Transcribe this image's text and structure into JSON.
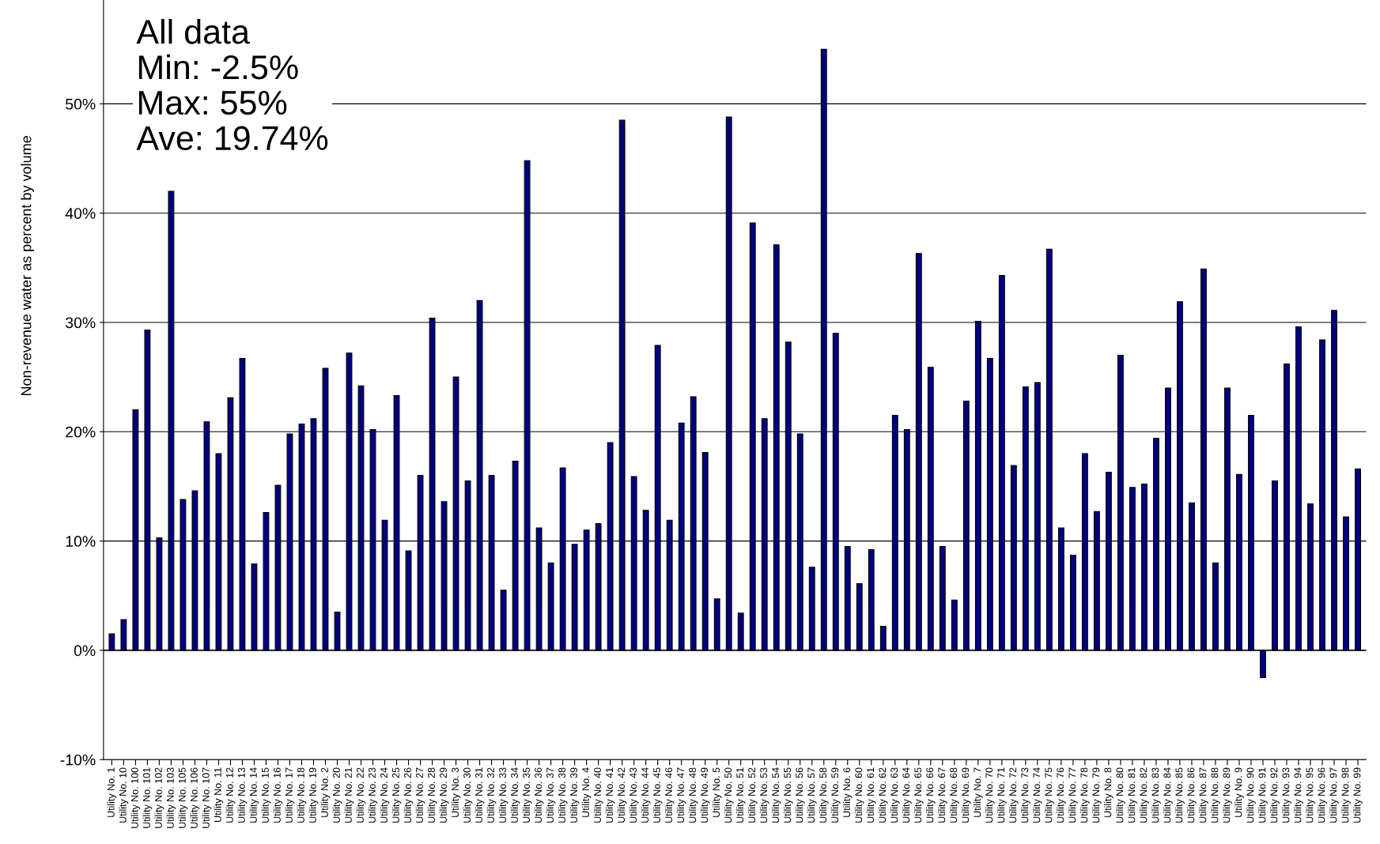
{
  "chart_data": {
    "type": "bar",
    "ylabel": "Non-revenue water as percent by volume",
    "categories": [
      "Utility No. 1",
      "Utility No. 10",
      "Utility No. 100",
      "Utility No. 101",
      "Utility No. 102",
      "Utility No. 103",
      "Utility No. 105",
      "Utility No. 106",
      "Utility No. 107",
      "Utility No. 11",
      "Utility No. 12",
      "Utility No. 13",
      "Utility No. 14",
      "Utility No. 15",
      "Utility No. 16",
      "Utility No. 17",
      "Utility No. 18",
      "Utility No. 19",
      "Utility No. 2",
      "Utility No. 20",
      "Utility No. 21",
      "Utility No. 22",
      "Utility No. 23",
      "Utility No. 24",
      "Utility No. 25",
      "Utility No. 26",
      "Utility No. 27",
      "Utility No. 28",
      "Utility No. 29",
      "Utility No. 3",
      "Utility No. 30",
      "Utility No. 31",
      "Utility No. 32",
      "Utility No. 33",
      "Utility No. 34",
      "Utility No. 35",
      "Utility No. 36",
      "Utility No. 37",
      "Utility No. 38",
      "Utility No. 39",
      "Utility No. 4",
      "Utility No. 40",
      "Utility No. 41",
      "Utility No. 42",
      "Utility No. 43",
      "Utility No. 44",
      "Utility No. 45",
      "Utility No. 46",
      "Utility No. 47",
      "Utility No. 48",
      "Utility No. 49",
      "Utility No. 5",
      "Utility No. 50",
      "Utility No. 51",
      "Utility No. 52",
      "Utility No. 53",
      "Utility No. 54",
      "Utility No. 55",
      "Utility No. 56",
      "Utility No. 57",
      "Utility No. 58",
      "Utility No. 59",
      "Utility No. 6",
      "Utility No. 60",
      "Utility No. 61",
      "Utility No. 62",
      "Utility No. 63",
      "Utility No. 64",
      "Utility No. 65",
      "Utility No. 66",
      "Utility No. 67",
      "Utility No. 68",
      "Utility No. 69",
      "Utility No. 7",
      "Utility No. 70",
      "Utility No. 71",
      "Utility No. 72",
      "Utility No. 73",
      "Utility No. 74",
      "Utility No. 75",
      "Utility No. 76",
      "Utility No. 77",
      "Utility No. 78",
      "Utility No. 79",
      "Utility No. 8",
      "Utility No. 80",
      "Utility No. 81",
      "Utility No. 82",
      "Utility No. 83",
      "Utility No. 84",
      "Utility No. 85",
      "Utility No. 86",
      "Utility No. 87",
      "Utility No. 88",
      "Utility No. 89",
      "Utility No. 9",
      "Utility No. 90",
      "Utility No. 91",
      "Utility No. 92",
      "Utility No. 93",
      "Utility No. 94",
      "Utility No. 95",
      "Utility No. 96",
      "Utility No. 97",
      "Utility No. 98",
      "Utility No. 99"
    ],
    "values": [
      1.5,
      2.8,
      22,
      29.3,
      10.3,
      42,
      13.8,
      14.6,
      20.9,
      18,
      23.1,
      26.7,
      7.9,
      12.6,
      15.1,
      19.8,
      20.7,
      21.2,
      25.8,
      3.5,
      27.2,
      24.2,
      20.2,
      11.9,
      23.3,
      9.1,
      16,
      30.4,
      13.6,
      25,
      15.5,
      32,
      16,
      5.5,
      17.3,
      44.8,
      11.2,
      8,
      16.7,
      9.7,
      11,
      11.6,
      19,
      48.5,
      15.9,
      12.8,
      27.9,
      11.9,
      20.8,
      23.2,
      18.1,
      4.7,
      48.8,
      3.4,
      39.1,
      21.2,
      37.1,
      28.2,
      19.8,
      7.6,
      55,
      29,
      9.5,
      6.1,
      9.2,
      2.2,
      21.5,
      20.2,
      36.3,
      25.9,
      9.5,
      4.6,
      22.8,
      30.1,
      26.7,
      34.3,
      16.9,
      24.1,
      24.5,
      36.7,
      11.2,
      8.7,
      18,
      12.7,
      16.3,
      27,
      14.9,
      15.2,
      19.4,
      24,
      31.9,
      13.5,
      34.9,
      8,
      24,
      16.1,
      21.5,
      -2.5,
      15.5,
      26.2,
      29.6,
      13.4,
      28.4,
      31.1,
      12.2,
      16.6
    ],
    "color": "#000080",
    "ylim": [
      -10,
      59.5
    ],
    "yticks": [
      {
        "value": -10,
        "label": "-10%"
      },
      {
        "value": 0,
        "label": "0%"
      },
      {
        "value": 10,
        "label": "10%"
      },
      {
        "value": 20,
        "label": "20%"
      },
      {
        "value": 30,
        "label": "30%"
      },
      {
        "value": 40,
        "label": "40%"
      },
      {
        "value": 50,
        "label": "50%"
      }
    ],
    "grid": "y",
    "annotations": [
      "All data",
      "Min: -2.5%",
      "Max: 55%",
      "Ave: 19.74%"
    ]
  }
}
